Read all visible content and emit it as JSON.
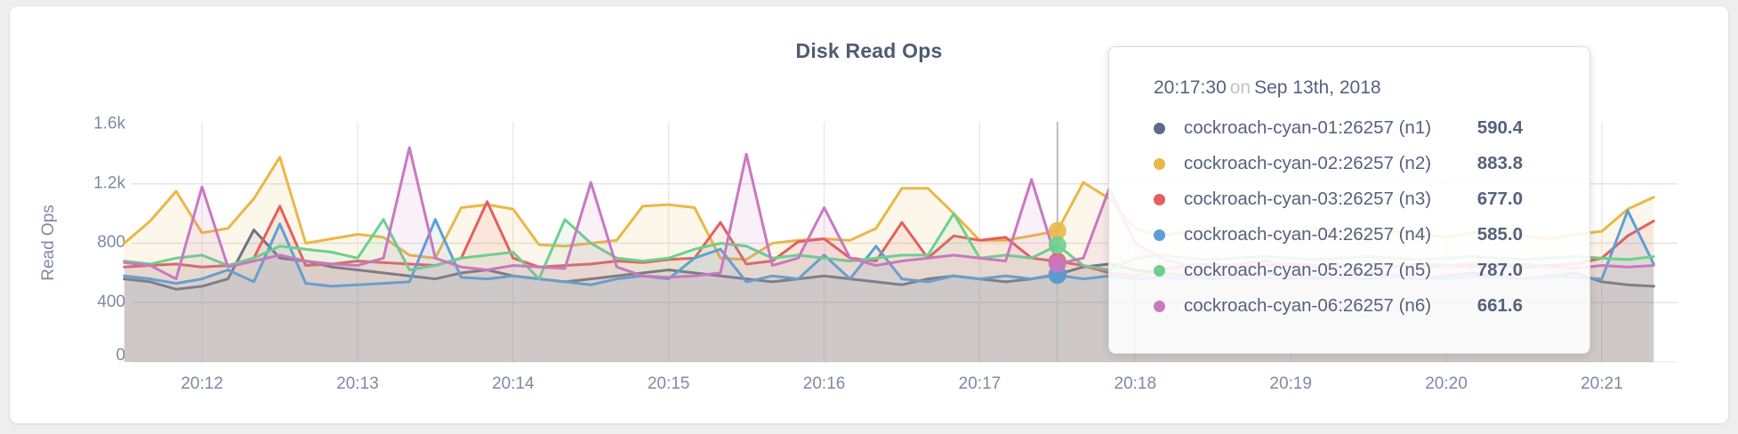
{
  "page": {
    "background": "#eeeeef"
  },
  "card": {
    "background": "#ffffff",
    "border": "#e3e3e4"
  },
  "chart": {
    "title": "Disk Read Ops",
    "ylabel": "Read Ops"
  },
  "tooltip": {
    "time": "20:17:30",
    "connector": "on",
    "date": "Sep 13th, 2018",
    "rows": [
      {
        "name": "cockroach-cyan-01:26257 (n1)",
        "value": "590.4",
        "color": "#5f6c86"
      },
      {
        "name": "cockroach-cyan-02:26257 (n2)",
        "value": "883.8",
        "color": "#eab747"
      },
      {
        "name": "cockroach-cyan-03:26257 (n3)",
        "value": "677.0",
        "color": "#e2605e"
      },
      {
        "name": "cockroach-cyan-04:26257 (n4)",
        "value": "585.0",
        "color": "#5c9fd6"
      },
      {
        "name": "cockroach-cyan-05:26257 (n5)",
        "value": "787.0",
        "color": "#6ecf8e"
      },
      {
        "name": "cockroach-cyan-06:26257 (n6)",
        "value": "661.6",
        "color": "#c978c1"
      }
    ]
  },
  "chart_data": {
    "type": "line",
    "title": "Disk Read Ops",
    "ylabel": "Read Ops",
    "xlabel": "",
    "x_start": "20:11:30",
    "x_step_seconds": 10,
    "x_ticks": [
      "20:12",
      "20:13",
      "20:14",
      "20:15",
      "20:16",
      "20:17",
      "20:18",
      "20:19",
      "20:20",
      "20:21"
    ],
    "y_ticks": [
      {
        "label": "0",
        "value": 0
      },
      {
        "label": "400",
        "value": 400
      },
      {
        "label": "800",
        "value": 800
      },
      {
        "label": "1.2k",
        "value": 1200
      },
      {
        "label": "1.6k",
        "value": 1600
      }
    ],
    "ylim": [
      0,
      1600
    ],
    "grid": true,
    "area_fill_opacity": 0.11,
    "legend_position": "tooltip",
    "hover": {
      "index": 36,
      "time": "20:17:30"
    },
    "series": [
      {
        "name": "cockroach-cyan-01:26257 (n1)",
        "color": "#5f6c86",
        "values": [
          560,
          540,
          490,
          510,
          560,
          890,
          700,
          680,
          640,
          620,
          600,
          580,
          560,
          600,
          620,
          580,
          560,
          540,
          560,
          580,
          600,
          620,
          600,
          580,
          560,
          540,
          560,
          580,
          560,
          540,
          520,
          560,
          580,
          560,
          540,
          560,
          590.4,
          640,
          660,
          620,
          600,
          580,
          560,
          580,
          600,
          580,
          560,
          580,
          600,
          580,
          560,
          580,
          600,
          580,
          560,
          580,
          600,
          540,
          520,
          510
        ]
      },
      {
        "name": "cockroach-cyan-02:26257 (n2)",
        "color": "#eab747",
        "values": [
          800,
          950,
          1150,
          870,
          900,
          1100,
          1380,
          800,
          830,
          860,
          840,
          720,
          700,
          1040,
          1060,
          1030,
          790,
          780,
          800,
          820,
          1050,
          1060,
          1040,
          700,
          690,
          800,
          820,
          830,
          820,
          900,
          1170,
          1170,
          1000,
          820,
          820,
          850,
          883.8,
          1210,
          1100,
          900,
          850,
          880,
          900,
          870,
          830,
          860,
          900,
          870,
          840,
          880,
          860,
          840,
          870,
          890,
          850,
          830,
          860,
          880,
          1030,
          1110
        ]
      },
      {
        "name": "cockroach-cyan-03:26257 (n3)",
        "color": "#e2605e",
        "values": [
          640,
          650,
          660,
          640,
          650,
          700,
          1050,
          650,
          660,
          680,
          670,
          660,
          650,
          700,
          1080,
          700,
          640,
          650,
          660,
          680,
          670,
          690,
          700,
          940,
          660,
          680,
          810,
          830,
          700,
          680,
          940,
          700,
          850,
          820,
          840,
          700,
          677,
          650,
          600,
          580,
          620,
          650,
          660,
          640,
          650,
          660,
          650,
          640,
          660,
          650,
          640,
          650,
          660,
          650,
          640,
          650,
          660,
          700,
          850,
          950
        ]
      },
      {
        "name": "cockroach-cyan-04:26257 (n4)",
        "color": "#5c9fd6",
        "values": [
          580,
          560,
          530,
          560,
          620,
          540,
          930,
          530,
          510,
          520,
          530,
          540,
          960,
          570,
          560,
          580,
          560,
          540,
          520,
          560,
          580,
          560,
          700,
          760,
          540,
          580,
          560,
          720,
          560,
          780,
          560,
          540,
          580,
          560,
          580,
          560,
          585,
          560,
          580,
          560,
          570,
          560,
          580,
          560,
          570,
          560,
          580,
          570,
          560,
          580,
          570,
          560,
          580,
          570,
          560,
          580,
          570,
          560,
          1020,
          660
        ]
      },
      {
        "name": "cockroach-cyan-05:26257 (n5)",
        "color": "#6ecf8e",
        "values": [
          680,
          660,
          700,
          720,
          650,
          700,
          780,
          760,
          740,
          700,
          960,
          620,
          650,
          700,
          720,
          740,
          560,
          960,
          800,
          700,
          680,
          700,
          760,
          800,
          780,
          700,
          720,
          700,
          680,
          700,
          720,
          720,
          1000,
          700,
          720,
          700,
          787,
          650,
          620,
          700,
          720,
          700,
          690,
          700,
          710,
          700,
          690,
          700,
          710,
          700,
          690,
          700,
          710,
          700,
          690,
          700,
          710,
          700,
          690,
          710
        ]
      },
      {
        "name": "cockroach-cyan-06:26257 (n6)",
        "color": "#c978c1",
        "values": [
          670,
          650,
          560,
          1180,
          640,
          680,
          720,
          680,
          660,
          650,
          700,
          1445,
          700,
          640,
          620,
          650,
          640,
          630,
          1210,
          640,
          580,
          570,
          580,
          600,
          1400,
          650,
          700,
          1040,
          700,
          650,
          680,
          700,
          720,
          700,
          680,
          1230,
          661.6,
          700,
          1170,
          800,
          700,
          650,
          640,
          660,
          680,
          650,
          640,
          660,
          650,
          640,
          660,
          650,
          640,
          650,
          660,
          640,
          630,
          650,
          640,
          650
        ]
      }
    ]
  }
}
